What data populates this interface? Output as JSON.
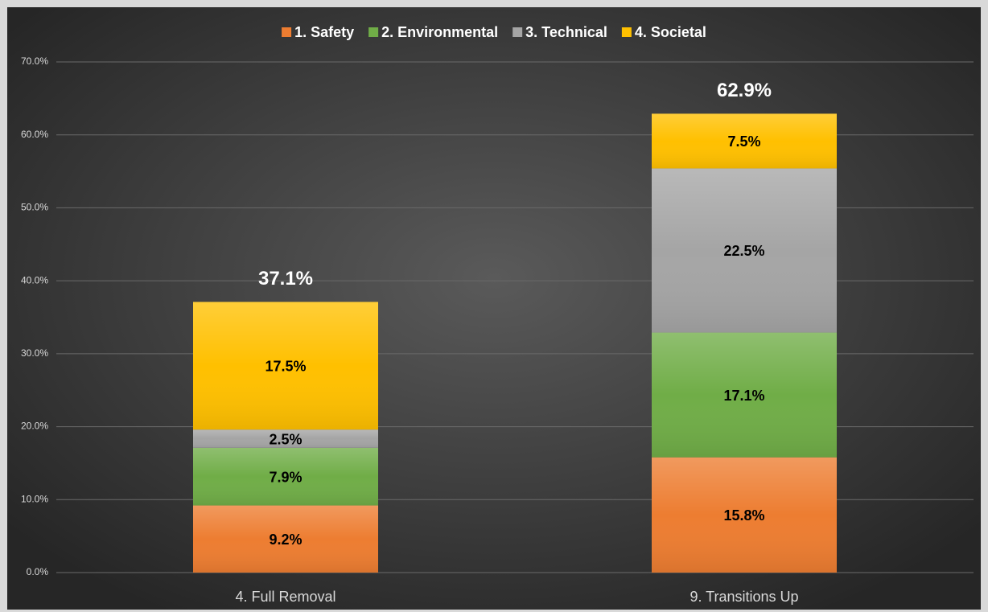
{
  "chart_data": {
    "type": "stacked_bar",
    "categories": [
      "4. Full Removal",
      "9. Transitions Up"
    ],
    "series": [
      {
        "name": "1. Safety",
        "color": "#ed7d31",
        "values": [
          9.2,
          15.8
        ],
        "value_labels": [
          "9.2%",
          "15.8%"
        ]
      },
      {
        "name": "2. Environmental",
        "color": "#70ad47",
        "values": [
          7.9,
          17.1
        ],
        "value_labels": [
          "7.9%",
          "17.1%"
        ]
      },
      {
        "name": "3. Technical",
        "color": "#a5a5a5",
        "values": [
          2.5,
          22.5
        ],
        "value_labels": [
          "2.5%",
          "22.5%"
        ]
      },
      {
        "name": "4. Societal",
        "color": "#ffc000",
        "values": [
          17.5,
          7.5
        ],
        "value_labels": [
          "17.5%",
          "7.5%"
        ]
      }
    ],
    "totals": [
      37.1,
      62.9
    ],
    "total_labels": [
      "37.1%",
      "62.9%"
    ],
    "ylim": [
      0,
      70
    ],
    "yticks": [
      {
        "value": 0,
        "label": "0.0%"
      },
      {
        "value": 10,
        "label": "10.0%"
      },
      {
        "value": 20,
        "label": "20.0%"
      },
      {
        "value": 30,
        "label": "30.0%"
      },
      {
        "value": 40,
        "label": "40.0%"
      },
      {
        "value": 50,
        "label": "50.0%"
      },
      {
        "value": 60,
        "label": "60.0%"
      },
      {
        "value": 70,
        "label": "70.0%"
      }
    ],
    "grid": true,
    "legend": "top"
  }
}
